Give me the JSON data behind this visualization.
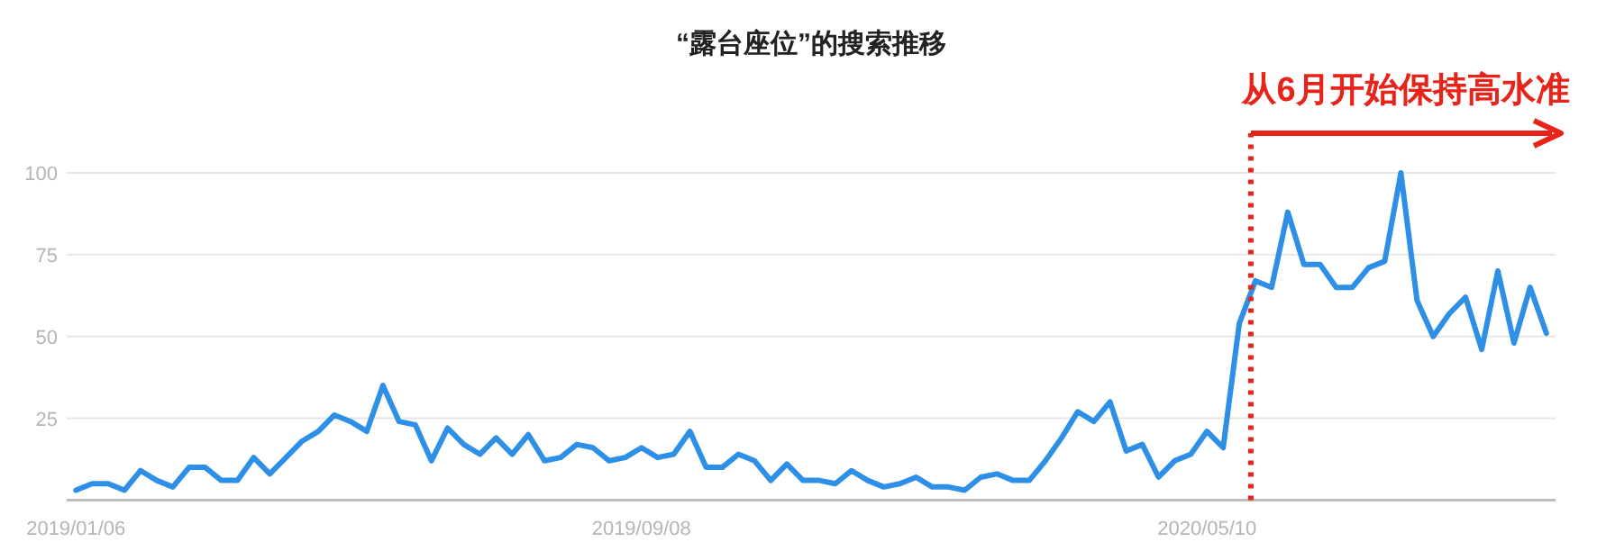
{
  "chart_data": {
    "type": "line",
    "title": "“露台座位”的搜索推移",
    "x": [
      "2019-01-06",
      "2019-01-13",
      "2019-01-20",
      "2019-01-27",
      "2019-02-03",
      "2019-02-10",
      "2019-02-17",
      "2019-02-24",
      "2019-03-03",
      "2019-03-10",
      "2019-03-17",
      "2019-03-24",
      "2019-03-31",
      "2019-04-07",
      "2019-04-14",
      "2019-04-21",
      "2019-04-28",
      "2019-05-05",
      "2019-05-12",
      "2019-05-19",
      "2019-05-26",
      "2019-06-02",
      "2019-06-09",
      "2019-06-16",
      "2019-06-23",
      "2019-06-30",
      "2019-07-07",
      "2019-07-14",
      "2019-07-21",
      "2019-07-28",
      "2019-08-04",
      "2019-08-11",
      "2019-08-18",
      "2019-08-25",
      "2019-09-01",
      "2019-09-08",
      "2019-09-15",
      "2019-09-22",
      "2019-09-29",
      "2019-10-06",
      "2019-10-13",
      "2019-10-20",
      "2019-10-27",
      "2019-11-03",
      "2019-11-10",
      "2019-11-17",
      "2019-11-24",
      "2019-12-01",
      "2019-12-08",
      "2019-12-15",
      "2019-12-22",
      "2019-12-29",
      "2020-01-05",
      "2020-01-12",
      "2020-01-19",
      "2020-01-26",
      "2020-02-02",
      "2020-02-09",
      "2020-02-16",
      "2020-02-23",
      "2020-03-01",
      "2020-03-08",
      "2020-03-15",
      "2020-03-22",
      "2020-03-29",
      "2020-04-05",
      "2020-04-12",
      "2020-04-19",
      "2020-04-26",
      "2020-05-03",
      "2020-05-10",
      "2020-05-17",
      "2020-05-24",
      "2020-05-31",
      "2020-06-07",
      "2020-06-14",
      "2020-06-21",
      "2020-06-28",
      "2020-07-05",
      "2020-07-12",
      "2020-07-19",
      "2020-07-26",
      "2020-08-02",
      "2020-08-09",
      "2020-08-16",
      "2020-08-23",
      "2020-08-30",
      "2020-09-06",
      "2020-09-13",
      "2020-09-20",
      "2020-09-27",
      "2020-10-04"
    ],
    "series": [
      {
        "color": "#2e8fe6",
        "values": [
          3,
          5,
          5,
          3,
          9,
          6,
          4,
          10,
          10,
          6,
          6,
          13,
          8,
          13,
          18,
          21,
          26,
          24,
          21,
          35,
          24,
          23,
          12,
          22,
          17,
          14,
          19,
          14,
          20,
          12,
          13,
          17,
          16,
          12,
          13,
          16,
          13,
          14,
          21,
          10,
          10,
          14,
          12,
          6,
          11,
          6,
          6,
          5,
          9,
          6,
          4,
          5,
          7,
          4,
          4,
          3,
          7,
          8,
          6,
          6,
          12,
          19,
          27,
          24,
          30,
          15,
          17,
          7,
          12,
          14,
          21,
          16,
          54,
          67,
          65,
          88,
          72,
          72,
          65,
          65,
          71,
          73,
          100,
          61,
          50,
          57,
          62,
          46,
          70,
          48,
          65,
          51
        ]
      }
    ],
    "xlim": [
      "2019-01-02",
      "2020-10-08"
    ],
    "xticks": [
      {
        "value": "2019-01-06",
        "label": "2019/01/06"
      },
      {
        "value": "2019-09-08",
        "label": "2019/09/08"
      },
      {
        "value": "2020-05-10",
        "label": "2020/05/10"
      }
    ],
    "ylim": [
      0,
      100
    ],
    "yticks": [
      25,
      50,
      75,
      100
    ],
    "grid": "y",
    "marker": "none",
    "line_style": "solid",
    "ref_lines": [
      {
        "axis": "x",
        "value": "2020-05-29",
        "label": "从6月开始保持高水准",
        "color": "#e8231a",
        "line_style": "dotted"
      }
    ]
  }
}
